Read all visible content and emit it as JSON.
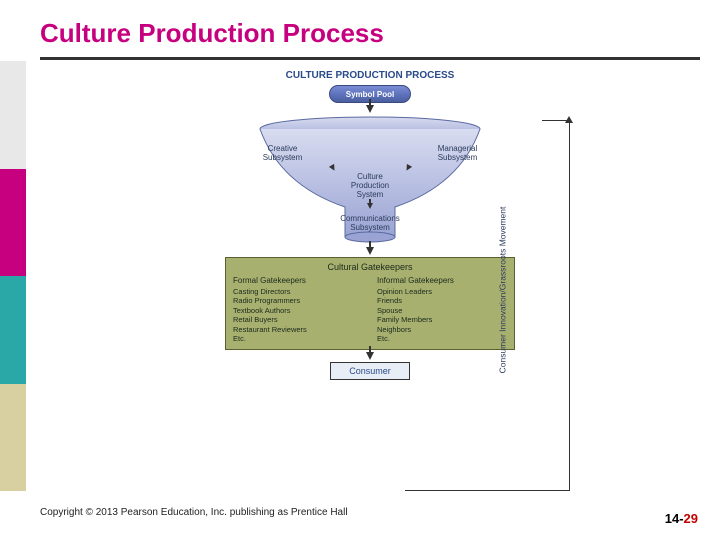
{
  "title": "Culture Production Process",
  "sidebar_colors": [
    "#e8e8e8",
    "#c6007e",
    "#2aa8a8",
    "#d8d0a0"
  ],
  "diagram": {
    "heading": "CULTURE PRODUCTION PROCESS",
    "symbol_pool": "Symbol Pool",
    "funnel": {
      "creative": "Creative\nSubsystem",
      "managerial": "Managerial\nSubsystem",
      "cps": "Culture\nProduction\nSystem",
      "comm": "Communications\nSubsystem",
      "fill_top": "#d8dcf0",
      "fill_bottom": "#9aa4d4",
      "stroke": "#5a6aa0"
    },
    "gatekeepers": {
      "title": "Cultural Gatekeepers",
      "bg": "#a8b070",
      "formal": {
        "head": "Formal Gatekeepers",
        "items": [
          "Casting Directors",
          "Radio Programmers",
          "Textbook Authors",
          "Retail Buyers",
          "Restaurant Reviewers",
          "Etc."
        ]
      },
      "informal": {
        "head": "Informal Gatekeepers",
        "items": [
          "Opinion Leaders",
          "Friends",
          "Spouse",
          "Family Members",
          "Neighbors",
          "Etc."
        ]
      }
    },
    "consumer": "Consumer",
    "side_label": "Consumer Innovation/Grassroots Movement"
  },
  "copyright": "Copyright © 2013 Pearson Education, Inc. publishing as Prentice Hall",
  "page": {
    "chapter": "14",
    "num": "29"
  }
}
